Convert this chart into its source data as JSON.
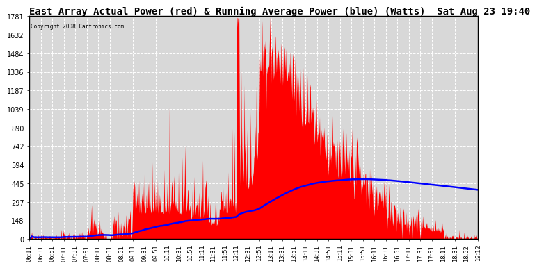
{
  "title": "East Array Actual Power (red) & Running Average Power (blue) (Watts)  Sat Aug 23 19:40",
  "copyright": "Copyright 2008 Cartronics.com",
  "ymin": 0.0,
  "ymax": 1780.8,
  "ytick_interval": 148.4,
  "background_color": "#ffffff",
  "plot_bg_color": "#d8d8d8",
  "grid_color": "#ffffff",
  "fill_color": "#ff0000",
  "line_color": "#0000ff",
  "title_fontsize": 10,
  "x_tick_labels": [
    "06:11",
    "06:31",
    "06:51",
    "07:11",
    "07:31",
    "07:51",
    "08:11",
    "08:31",
    "08:51",
    "09:11",
    "09:31",
    "09:51",
    "10:11",
    "10:31",
    "10:51",
    "11:11",
    "11:31",
    "11:51",
    "12:11",
    "12:31",
    "12:51",
    "13:11",
    "13:31",
    "13:51",
    "14:11",
    "14:31",
    "14:51",
    "15:11",
    "15:31",
    "15:51",
    "16:11",
    "16:31",
    "16:51",
    "17:11",
    "17:31",
    "17:51",
    "18:11",
    "18:31",
    "18:52",
    "19:12"
  ]
}
